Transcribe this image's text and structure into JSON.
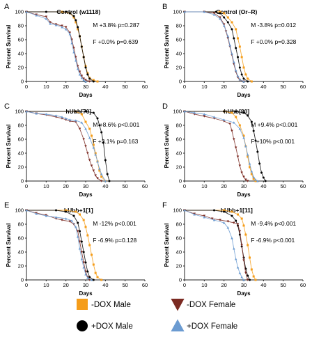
{
  "figure": {
    "legend": [
      {
        "label": "-DOX Male",
        "color": "#f59d1a",
        "marker": "square"
      },
      {
        "label": "+DOX Male",
        "color": "#000000",
        "marker": "circle"
      },
      {
        "label": "-DOX Female",
        "color": "#7b2a22",
        "marker": "triangle-down"
      },
      {
        "label": "+DOX Female",
        "color": "#6b9bd1",
        "marker": "triangle-up"
      }
    ]
  },
  "chart_data": [
    {
      "panel": "A",
      "type": "line",
      "title": "Control (w1118)",
      "xlabel": "Days",
      "ylabel": "Percent Survival",
      "xlim": [
        0,
        60
      ],
      "ylim": [
        0,
        100
      ],
      "xticks": [
        "0",
        "10",
        "20",
        "30",
        "40",
        "50",
        "60"
      ],
      "yticks": [
        "0",
        "20",
        "40",
        "60",
        "80",
        "100"
      ],
      "stats": [
        "M +3.8% p=0.287",
        "F +0.0% p=0.639"
      ],
      "series": [
        {
          "name": "-DOX Male",
          "x": [
            0,
            18,
            22,
            24,
            25,
            26,
            27,
            28,
            29,
            30,
            31,
            32,
            34,
            36
          ],
          "y": [
            100,
            100,
            98,
            92,
            85,
            75,
            65,
            50,
            35,
            22,
            12,
            5,
            2,
            0
          ]
        },
        {
          "name": "+DOX Male",
          "x": [
            0,
            10,
            20,
            22,
            24,
            25,
            26,
            27,
            28,
            29,
            30,
            31,
            32,
            34
          ],
          "y": [
            100,
            100,
            100,
            98,
            94,
            88,
            78,
            65,
            50,
            35,
            20,
            10,
            4,
            0
          ]
        },
        {
          "name": "-DOX Female",
          "x": [
            0,
            5,
            10,
            12,
            15,
            18,
            20,
            22,
            23,
            24,
            25,
            26,
            27,
            28,
            29,
            30,
            32
          ],
          "y": [
            100,
            96,
            93,
            85,
            82,
            80,
            78,
            70,
            60,
            48,
            35,
            22,
            14,
            8,
            4,
            2,
            0
          ]
        },
        {
          "name": "+DOX Female",
          "x": [
            0,
            5,
            10,
            12,
            15,
            18,
            20,
            22,
            23,
            24,
            25,
            26,
            27,
            28,
            29,
            30
          ],
          "y": [
            100,
            95,
            90,
            83,
            81,
            78,
            75,
            68,
            55,
            42,
            30,
            18,
            10,
            5,
            2,
            0
          ]
        }
      ]
    },
    {
      "panel": "B",
      "type": "line",
      "title": "Control (Or–R)",
      "xlabel": "Days",
      "ylabel": "Percent Survival",
      "xlim": [
        0,
        60
      ],
      "ylim": [
        0,
        100
      ],
      "xticks": [
        "0",
        "10",
        "20",
        "30",
        "40",
        "50",
        "60"
      ],
      "yticks": [
        "0",
        "20",
        "40",
        "60",
        "80",
        "100"
      ],
      "stats": [
        "M -3.8% p=0.012",
        "F +0.0% p=0.328"
      ],
      "series": [
        {
          "name": "-DOX Male",
          "x": [
            0,
            18,
            20,
            22,
            24,
            26,
            27,
            28,
            29,
            30,
            31,
            32,
            34
          ],
          "y": [
            100,
            100,
            98,
            92,
            85,
            75,
            62,
            50,
            35,
            20,
            10,
            4,
            0
          ]
        },
        {
          "name": "+DOX Male",
          "x": [
            0,
            16,
            18,
            20,
            22,
            24,
            25,
            26,
            27,
            28,
            29,
            30,
            32
          ],
          "y": [
            100,
            100,
            98,
            92,
            85,
            75,
            62,
            48,
            35,
            20,
            10,
            4,
            0
          ]
        },
        {
          "name": "-DOX Female",
          "x": [
            0,
            10,
            15,
            18,
            20,
            21,
            22,
            23,
            24,
            25,
            26,
            27,
            28,
            30
          ],
          "y": [
            100,
            100,
            98,
            92,
            82,
            72,
            62,
            50,
            38,
            25,
            14,
            6,
            2,
            0
          ]
        },
        {
          "name": "+DOX Female",
          "x": [
            0,
            10,
            15,
            18,
            20,
            22,
            23,
            24,
            25,
            26,
            27,
            28,
            30
          ],
          "y": [
            100,
            100,
            96,
            90,
            80,
            65,
            52,
            40,
            28,
            16,
            8,
            3,
            0
          ]
        }
      ]
    },
    {
      "panel": "C",
      "type": "line",
      "title": "hUbb[70]",
      "xlabel": "Days",
      "ylabel": "Percent Survival",
      "xlim": [
        0,
        60
      ],
      "ylim": [
        0,
        100
      ],
      "xticks": [
        "0",
        "10",
        "20",
        "30",
        "40",
        "50",
        "60"
      ],
      "yticks": [
        "0",
        "20",
        "40",
        "60",
        "80",
        "100"
      ],
      "stats": [
        "M +8.6% p<0.001",
        "F +3.1% p=0.163"
      ],
      "series": [
        {
          "name": "-DOX Male",
          "x": [
            0,
            25,
            28,
            30,
            32,
            33,
            34,
            35,
            36,
            37,
            38,
            40
          ],
          "y": [
            100,
            100,
            96,
            85,
            75,
            65,
            52,
            40,
            28,
            15,
            6,
            0
          ]
        },
        {
          "name": "+DOX Male",
          "x": [
            0,
            25,
            30,
            34,
            36,
            37,
            38,
            39,
            40,
            41,
            42
          ],
          "y": [
            100,
            100,
            100,
            98,
            90,
            80,
            70,
            55,
            30,
            10,
            0
          ]
        },
        {
          "name": "-DOX Female",
          "x": [
            0,
            5,
            10,
            15,
            18,
            20,
            22,
            25,
            27,
            29,
            30,
            31,
            32,
            33,
            34,
            35,
            36,
            38
          ],
          "y": [
            100,
            97,
            95,
            92,
            90,
            88,
            86,
            85,
            75,
            60,
            50,
            40,
            30,
            22,
            15,
            8,
            4,
            0
          ]
        },
        {
          "name": "+DOX Female",
          "x": [
            0,
            5,
            10,
            15,
            18,
            20,
            22,
            25,
            28,
            30,
            32,
            34,
            35,
            36,
            37,
            38,
            40
          ],
          "y": [
            100,
            97,
            96,
            94,
            92,
            90,
            88,
            87,
            84,
            75,
            62,
            48,
            38,
            28,
            18,
            10,
            0
          ]
        }
      ]
    },
    {
      "panel": "D",
      "type": "line",
      "title": "hUbb[80]",
      "xlabel": "Days",
      "ylabel": "Percent Survival",
      "xlim": [
        0,
        60
      ],
      "ylim": [
        0,
        100
      ],
      "xticks": [
        "0",
        "10",
        "20",
        "30",
        "40",
        "50",
        "60"
      ],
      "yticks": [
        "0",
        "20",
        "40",
        "60",
        "80",
        "100"
      ],
      "stats": [
        "M +9.4% p<0.001",
        "F +10% p<0.001"
      ],
      "series": [
        {
          "name": "-DOX Male",
          "x": [
            0,
            20,
            24,
            26,
            28,
            30,
            31,
            32,
            33,
            34,
            35,
            36
          ],
          "y": [
            100,
            100,
            98,
            92,
            80,
            65,
            50,
            35,
            20,
            10,
            3,
            0
          ]
        },
        {
          "name": "+DOX Male",
          "x": [
            0,
            20,
            26,
            30,
            32,
            34,
            35,
            36,
            37,
            38,
            39,
            40,
            41
          ],
          "y": [
            100,
            100,
            100,
            98,
            94,
            85,
            72,
            58,
            42,
            25,
            12,
            5,
            0
          ]
        },
        {
          "name": "-DOX Female",
          "x": [
            0,
            5,
            10,
            15,
            20,
            23,
            24,
            25,
            26,
            27,
            28,
            29,
            30,
            31,
            32
          ],
          "y": [
            100,
            96,
            93,
            90,
            86,
            82,
            72,
            60,
            48,
            35,
            22,
            12,
            6,
            2,
            0
          ]
        },
        {
          "name": "+DOX Female",
          "x": [
            0,
            5,
            10,
            15,
            20,
            25,
            28,
            30,
            31,
            32,
            33,
            34,
            35,
            36,
            37
          ],
          "y": [
            100,
            98,
            96,
            92,
            88,
            84,
            75,
            62,
            50,
            38,
            25,
            14,
            6,
            2,
            0
          ]
        }
      ]
    },
    {
      "panel": "E",
      "type": "line",
      "title": "hUbb+1[1]",
      "xlabel": "Days",
      "ylabel": "Percent Survival",
      "xlim": [
        0,
        60
      ],
      "ylim": [
        0,
        100
      ],
      "xticks": [
        "0",
        "10",
        "20",
        "30",
        "40",
        "50",
        "60"
      ],
      "yticks": [
        "0",
        "20",
        "40",
        "60",
        "80",
        "100"
      ],
      "stats": [
        "M -12% p<0.001",
        "F  -6.9% p=0.128"
      ],
      "series": [
        {
          "name": "-DOX Male",
          "x": [
            0,
            20,
            25,
            27,
            29,
            30,
            31,
            32,
            33,
            34,
            35,
            36,
            38
          ],
          "y": [
            100,
            100,
            98,
            94,
            86,
            76,
            64,
            50,
            36,
            22,
            10,
            4,
            0
          ]
        },
        {
          "name": "+DOX Male",
          "x": [
            0,
            15,
            20,
            24,
            26,
            27,
            28,
            29,
            30,
            31,
            32,
            34
          ],
          "y": [
            100,
            100,
            98,
            92,
            82,
            70,
            55,
            40,
            25,
            12,
            4,
            0
          ]
        },
        {
          "name": "-DOX Female",
          "x": [
            0,
            5,
            10,
            15,
            18,
            22,
            24,
            26,
            27,
            28,
            29,
            30,
            31,
            32
          ],
          "y": [
            100,
            96,
            93,
            88,
            86,
            84,
            80,
            70,
            55,
            40,
            25,
            12,
            4,
            0
          ]
        },
        {
          "name": "+DOX Female",
          "x": [
            0,
            5,
            10,
            15,
            20,
            23,
            25,
            26,
            27,
            28,
            29,
            30,
            31,
            33
          ],
          "y": [
            100,
            95,
            92,
            90,
            88,
            85,
            76,
            62,
            45,
            30,
            18,
            8,
            3,
            0
          ]
        }
      ]
    },
    {
      "panel": "F",
      "type": "line",
      "title": "hUbb+1[11]",
      "xlabel": "Days",
      "ylabel": "Percent Survival",
      "xlim": [
        0,
        60
      ],
      "ylim": [
        0,
        100
      ],
      "xticks": [
        "0",
        "10",
        "20",
        "30",
        "40",
        "50",
        "60"
      ],
      "yticks": [
        "0",
        "20",
        "40",
        "60",
        "80",
        "100"
      ],
      "stats": [
        "M -9.4% p<0.001",
        "F  -6.9% p<0.001"
      ],
      "series": [
        {
          "name": "-DOX Male",
          "x": [
            0,
            20,
            24,
            27,
            29,
            30,
            31,
            32,
            33,
            34,
            35,
            36
          ],
          "y": [
            100,
            100,
            98,
            94,
            88,
            78,
            65,
            50,
            32,
            15,
            5,
            0
          ]
        },
        {
          "name": "+DOX Male",
          "x": [
            0,
            15,
            20,
            24,
            26,
            27,
            28,
            29,
            30,
            31,
            32,
            33
          ],
          "y": [
            100,
            100,
            98,
            92,
            85,
            78,
            65,
            48,
            32,
            16,
            6,
            0
          ]
        },
        {
          "name": "-DOX Female",
          "x": [
            0,
            5,
            10,
            14,
            18,
            22,
            25,
            27,
            28,
            29,
            30,
            31,
            32
          ],
          "y": [
            100,
            95,
            92,
            88,
            86,
            84,
            82,
            80,
            70,
            50,
            28,
            10,
            0
          ]
        },
        {
          "name": "+DOX Female",
          "x": [
            0,
            5,
            10,
            15,
            20,
            22,
            24,
            25,
            26,
            27,
            28,
            29,
            30
          ],
          "y": [
            100,
            94,
            90,
            86,
            82,
            75,
            60,
            45,
            30,
            18,
            10,
            4,
            0
          ]
        }
      ]
    }
  ]
}
